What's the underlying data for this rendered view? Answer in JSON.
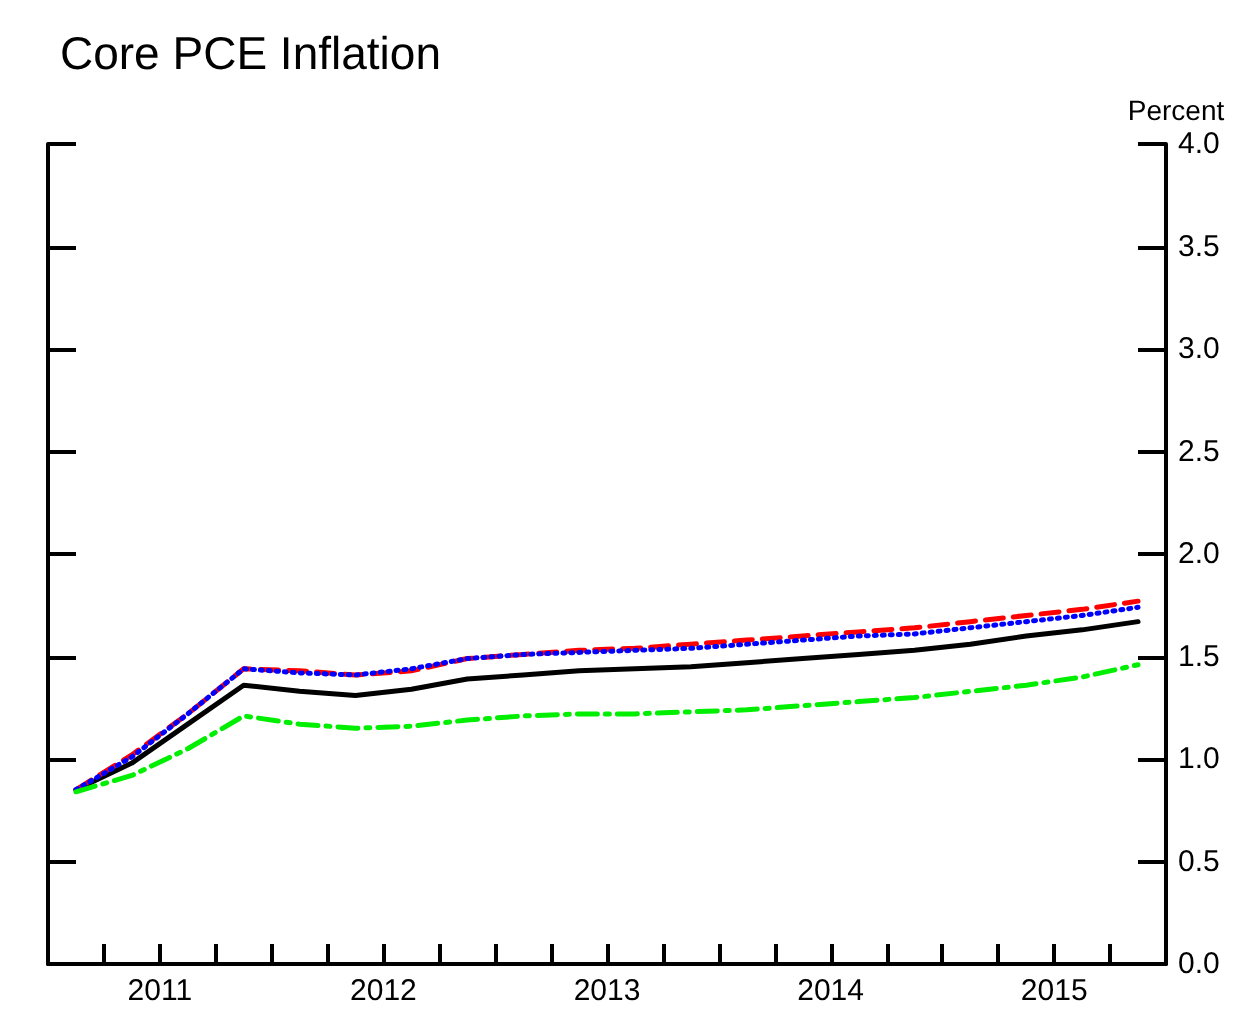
{
  "chart_data": {
    "type": "line",
    "title": "Core PCE Inflation",
    "ylabel": "Percent",
    "x": [
      2011.125,
      2011.375,
      2011.625,
      2011.875,
      2012.125,
      2012.375,
      2012.625,
      2012.875,
      2013.125,
      2013.375,
      2013.625,
      2013.875,
      2014.125,
      2014.375,
      2014.625,
      2014.875,
      2015.125,
      2015.375,
      2015.625,
      2015.875
    ],
    "series": [
      {
        "color": "#000000",
        "line_style": "solid",
        "values": [
          0.85,
          0.98,
          1.17,
          1.36,
          1.33,
          1.31,
          1.34,
          1.39,
          1.41,
          1.43,
          1.44,
          1.45,
          1.47,
          1.49,
          1.51,
          1.53,
          1.56,
          1.6,
          1.63,
          1.67
        ]
      },
      {
        "color": "#ff0000",
        "line_style": "dashed",
        "values": [
          0.85,
          1.02,
          1.22,
          1.44,
          1.43,
          1.41,
          1.43,
          1.49,
          1.51,
          1.53,
          1.54,
          1.56,
          1.58,
          1.6,
          1.62,
          1.64,
          1.67,
          1.7,
          1.73,
          1.77
        ]
      },
      {
        "color": "#0000ff",
        "line_style": "dotted",
        "values": [
          0.85,
          1.01,
          1.22,
          1.44,
          1.42,
          1.41,
          1.44,
          1.49,
          1.51,
          1.52,
          1.53,
          1.54,
          1.56,
          1.58,
          1.6,
          1.61,
          1.64,
          1.67,
          1.7,
          1.74
        ]
      },
      {
        "color": "#00ee00",
        "line_style": "dashdot",
        "values": [
          0.84,
          0.92,
          1.05,
          1.21,
          1.17,
          1.15,
          1.16,
          1.19,
          1.21,
          1.22,
          1.22,
          1.23,
          1.24,
          1.26,
          1.28,
          1.3,
          1.33,
          1.36,
          1.4,
          1.46
        ]
      }
    ],
    "xlim": [
      2011,
      2016
    ],
    "xticks": [
      {
        "value": 2011.25,
        "label": null
      },
      {
        "value": 2011.5,
        "label": "2011"
      },
      {
        "value": 2011.75,
        "label": null
      },
      {
        "value": 2012,
        "label": null
      },
      {
        "value": 2012.25,
        "label": null
      },
      {
        "value": 2012.5,
        "label": "2012"
      },
      {
        "value": 2012.75,
        "label": null
      },
      {
        "value": 2013,
        "label": null
      },
      {
        "value": 2013.25,
        "label": null
      },
      {
        "value": 2013.5,
        "label": "2013"
      },
      {
        "value": 2013.75,
        "label": null
      },
      {
        "value": 2014,
        "label": null
      },
      {
        "value": 2014.25,
        "label": null
      },
      {
        "value": 2014.5,
        "label": "2014"
      },
      {
        "value": 2014.75,
        "label": null
      },
      {
        "value": 2015,
        "label": null
      },
      {
        "value": 2015.25,
        "label": null
      },
      {
        "value": 2015.5,
        "label": "2015"
      },
      {
        "value": 2015.75,
        "label": null
      }
    ],
    "ylim": [
      0,
      4
    ],
    "yticks": [
      {
        "value": 0,
        "label": "0.0"
      },
      {
        "value": 0.5,
        "label": "0.5"
      },
      {
        "value": 1,
        "label": "1.0"
      },
      {
        "value": 1.5,
        "label": "1.5"
      },
      {
        "value": 2,
        "label": "2.0"
      },
      {
        "value": 2.5,
        "label": "2.5"
      },
      {
        "value": 3,
        "label": "3.0"
      },
      {
        "value": 3.5,
        "label": "3.5"
      },
      {
        "value": 4,
        "label": "4.0"
      }
    ],
    "grid": false,
    "marker": "none"
  }
}
